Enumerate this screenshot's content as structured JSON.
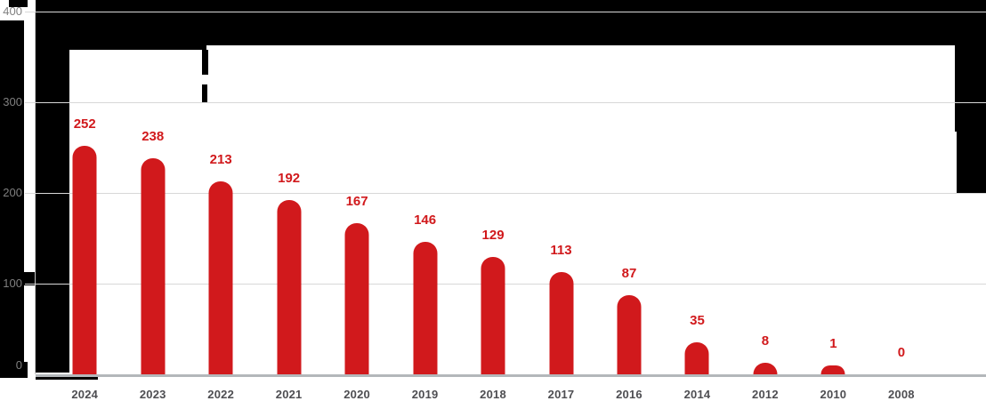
{
  "chart_data": {
    "type": "bar",
    "categories": [
      "2024",
      "2023",
      "2022",
      "2021",
      "2020",
      "2019",
      "2018",
      "2017",
      "2016",
      "2014",
      "2012",
      "2010",
      "2008"
    ],
    "values": [
      252,
      238,
      213,
      192,
      167,
      146,
      129,
      113,
      87,
      35,
      8,
      1,
      0
    ],
    "xlabel": "",
    "ylabel": "",
    "y_axis": {
      "ticks": [
        400,
        300,
        200,
        100,
        0
      ],
      "range": [
        0,
        400
      ]
    },
    "grid": true,
    "legend": "none",
    "show_value_labels": true,
    "notes": "title and legend areas are covered by black redaction blocks",
    "colors": {
      "bar": "#d1191c",
      "value_label": "#d1191c",
      "x_label": "#4e4e52",
      "y_label": "#7f7f7f",
      "gridline": "#d8d8d8",
      "axis_baseline": "#b3b7ba",
      "y_axis_line": "#c9c9c9",
      "redaction": "#000000",
      "background": "#ffffff"
    }
  }
}
